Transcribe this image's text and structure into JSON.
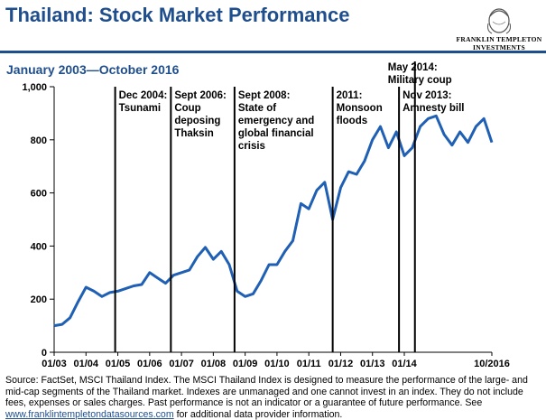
{
  "header": {
    "title": "Thailand: Stock Market Performance",
    "subtitle": "January 2003—October 2016",
    "logo_line1": "FRANKLIN TEMPLETON",
    "logo_line2": "INVESTMENTS",
    "logo_icon": "franklin-portrait-icon"
  },
  "colors": {
    "brand": "#1f4e8c",
    "series": "#1f5fb4",
    "event_line": "#000000"
  },
  "footer": {
    "source_text": "Source: FactSet, MSCI Thailand Index. The MSCI Thailand Index is designed  to measure the performance of the large- and mid-cap segments of the Thailand market. Indexes are unmanaged and one cannot invest in an index. They do not include fees, expenses or sales charges. Past performance is not an indicator or a guarantee of future performance. See",
    "link_text": "www.franklintempletondatasources.com",
    "link_suffix": " for additional data provider information."
  },
  "chart_data": {
    "type": "line",
    "title": "",
    "xlabel": "",
    "ylabel": "",
    "ylim": [
      0,
      1000
    ],
    "yticks": [
      0,
      200,
      400,
      600,
      800,
      1000
    ],
    "ytick_labels": [
      "0",
      "200",
      "400",
      "600",
      "800",
      "1,000"
    ],
    "xlim": [
      "2003-01",
      "2016-10"
    ],
    "xticks": [
      "2003-01",
      "2004-01",
      "2005-01",
      "2006-01",
      "2007-01",
      "2008-01",
      "2009-01",
      "2010-01",
      "2011-01",
      "2012-01",
      "2013-01",
      "2014-01",
      "2016-10"
    ],
    "xtick_labels": [
      "01/03",
      "01/04",
      "01/05",
      "01/06",
      "01/07",
      "01/08",
      "01/09",
      "01/10",
      "01/11",
      "01/12",
      "01/13",
      "01/14",
      "10/2016"
    ],
    "grid": false,
    "legend": "none",
    "series": [
      {
        "x": [
          "2003-01",
          "2003-04",
          "2003-07",
          "2003-10",
          "2004-01",
          "2004-04",
          "2004-07",
          "2004-10",
          "2005-01",
          "2005-04",
          "2005-07",
          "2005-10",
          "2006-01",
          "2006-04",
          "2006-07",
          "2006-10",
          "2007-01",
          "2007-04",
          "2007-07",
          "2007-10",
          "2008-01",
          "2008-04",
          "2008-07",
          "2008-10",
          "2009-01",
          "2009-04",
          "2009-07",
          "2009-10",
          "2010-01",
          "2010-04",
          "2010-07",
          "2010-10",
          "2011-01",
          "2011-04",
          "2011-07",
          "2011-10",
          "2012-01",
          "2012-04",
          "2012-07",
          "2012-10",
          "2013-01",
          "2013-04",
          "2013-07",
          "2013-10",
          "2014-01",
          "2014-04",
          "2014-07",
          "2014-10",
          "2015-01",
          "2015-04",
          "2015-07",
          "2015-10",
          "2016-01",
          "2016-04",
          "2016-07",
          "2016-10"
        ],
        "values": [
          100,
          105,
          130,
          190,
          245,
          230,
          210,
          225,
          230,
          240,
          250,
          255,
          300,
          280,
          260,
          290,
          300,
          310,
          360,
          395,
          350,
          380,
          330,
          230,
          210,
          220,
          270,
          330,
          330,
          380,
          420,
          560,
          540,
          610,
          640,
          500,
          620,
          680,
          670,
          720,
          800,
          850,
          770,
          830,
          740,
          770,
          850,
          880,
          890,
          820,
          780,
          830,
          790,
          850,
          880,
          790
        ]
      }
    ],
    "annotations": [
      {
        "x": "2004-12",
        "label": "Dec 2004:\nTsunami"
      },
      {
        "x": "2006-09",
        "label": "Sept 2006:\nCoup\ndeposing\nThaksin"
      },
      {
        "x": "2008-09",
        "label": "Sept 2008:\nState of\nemergency and\nglobal financial\ncrisis"
      },
      {
        "x": "2011-10",
        "label": "2011:\nMonsoon\nfloods"
      },
      {
        "x": "2013-11",
        "label": "Nov 2013:\nAmnesty bill"
      },
      {
        "x": "2014-05",
        "label": "May 2014:\nMilitary coup"
      }
    ]
  }
}
